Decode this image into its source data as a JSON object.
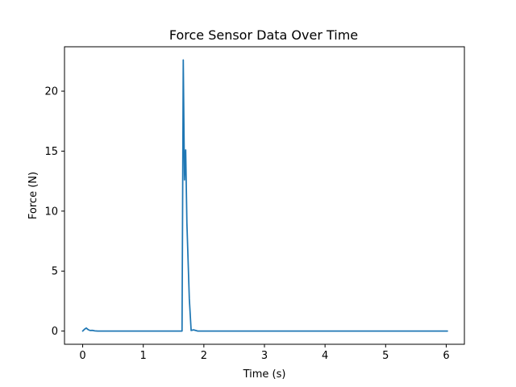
{
  "chart_data": {
    "type": "line",
    "title": "Force Sensor Data Over Time",
    "xlabel": "Time (s)",
    "ylabel": "Force (N)",
    "xlim": [
      -0.3,
      6.3
    ],
    "ylim": [
      -1.1,
      23.7
    ],
    "xticks": [
      0,
      1,
      2,
      3,
      4,
      5,
      6
    ],
    "yticks": [
      0,
      5,
      10,
      15,
      20
    ],
    "grid": false,
    "series": [
      {
        "color": "#1f77b4",
        "x": [
          0.0,
          0.03,
          0.06,
          0.09,
          0.12,
          0.16,
          0.2,
          0.25,
          0.3,
          0.5,
          1.0,
          1.5,
          1.64,
          1.66,
          1.68,
          1.7,
          1.72,
          1.76,
          1.79,
          1.83,
          1.9,
          2.0,
          3.0,
          4.0,
          5.0,
          6.02
        ],
        "y": [
          0.0,
          0.15,
          0.25,
          0.12,
          0.05,
          0.06,
          0.02,
          0.0,
          0.0,
          0.0,
          0.0,
          0.0,
          0.0,
          22.6,
          12.6,
          15.1,
          9.0,
          2.7,
          0.05,
          0.1,
          0.0,
          0.0,
          0.0,
          0.0,
          0.0,
          0.0
        ]
      }
    ]
  }
}
